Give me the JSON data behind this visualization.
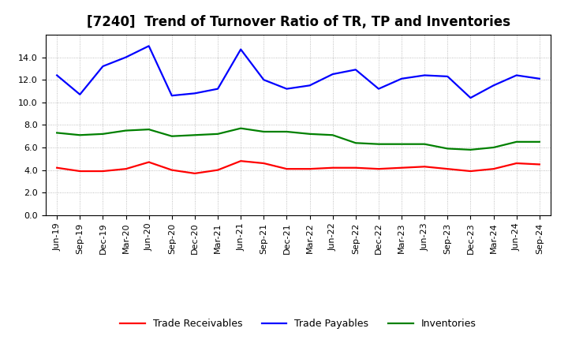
{
  "title": "[7240]  Trend of Turnover Ratio of TR, TP and Inventories",
  "x_labels": [
    "Jun-19",
    "Sep-19",
    "Dec-19",
    "Mar-20",
    "Jun-20",
    "Sep-20",
    "Dec-20",
    "Mar-21",
    "Jun-21",
    "Sep-21",
    "Dec-21",
    "Mar-22",
    "Jun-22",
    "Sep-22",
    "Dec-22",
    "Mar-23",
    "Jun-23",
    "Sep-23",
    "Dec-23",
    "Mar-24",
    "Jun-24",
    "Sep-24"
  ],
  "trade_receivables": [
    4.2,
    3.9,
    3.9,
    4.1,
    4.7,
    4.0,
    3.7,
    4.0,
    4.8,
    4.6,
    4.1,
    4.1,
    4.2,
    4.2,
    4.1,
    4.2,
    4.3,
    4.1,
    3.9,
    4.1,
    4.6,
    4.5
  ],
  "trade_payables": [
    12.4,
    10.7,
    13.2,
    14.0,
    15.0,
    10.6,
    10.8,
    11.2,
    14.7,
    12.0,
    11.2,
    11.5,
    12.5,
    12.9,
    11.2,
    12.1,
    12.4,
    12.3,
    10.4,
    11.5,
    12.4,
    12.1
  ],
  "inventories": [
    7.3,
    7.1,
    7.2,
    7.5,
    7.6,
    7.0,
    7.1,
    7.2,
    7.7,
    7.4,
    7.4,
    7.2,
    7.1,
    6.4,
    6.3,
    6.3,
    6.3,
    5.9,
    5.8,
    6.0,
    6.5,
    6.5
  ],
  "ylim": [
    0,
    16
  ],
  "yticks": [
    0.0,
    2.0,
    4.0,
    6.0,
    8.0,
    10.0,
    12.0,
    14.0
  ],
  "color_tr": "#ff0000",
  "color_tp": "#0000ff",
  "color_inv": "#008000",
  "legend_labels": [
    "Trade Receivables",
    "Trade Payables",
    "Inventories"
  ],
  "background_color": "#ffffff",
  "plot_bg_color": "#ffffff",
  "grid_color": "#999999",
  "title_fontsize": 12,
  "tick_fontsize": 8,
  "legend_fontsize": 9,
  "line_width": 1.6
}
